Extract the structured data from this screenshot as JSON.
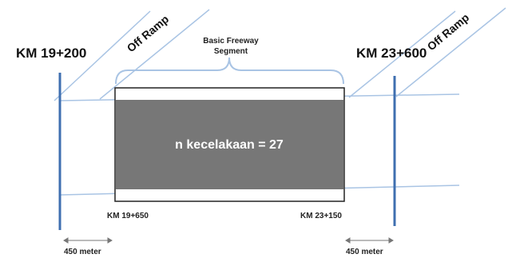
{
  "markers": {
    "left_km": "KM 19+200",
    "right_km": "KM 23+600"
  },
  "ramps": {
    "left_label": "Off Ramp",
    "right_label": "Off Ramp"
  },
  "segment": {
    "title_line1": "Basic Freeway",
    "title_line2": "Segment",
    "start_km": "KM 19+650",
    "end_km": "KM 23+150",
    "center_text": "n kecelakaan = 27",
    "fill_color": "#777777"
  },
  "distances": {
    "left": "450 meter",
    "right": "450 meter"
  },
  "colors": {
    "marker_line": "#3f6fb0",
    "road_line": "#a9c4e4",
    "bracket": "#a9c4e4"
  }
}
